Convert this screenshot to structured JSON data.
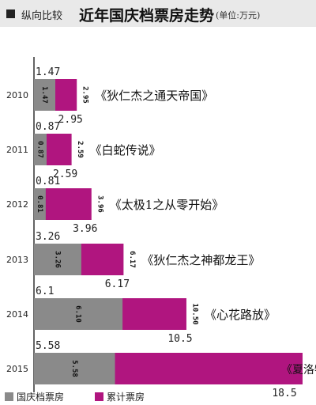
{
  "header": {
    "tag": "纵向比较",
    "title": "近年国庆档票房走势",
    "unit": "(单位:万元)"
  },
  "colors": {
    "national_day": "#8a8a8a",
    "cumulative": "#b0157f",
    "axis": "#222222",
    "header_bg": "#e9e9e9"
  },
  "chart_data": {
    "type": "bar",
    "orientation": "horizontal",
    "stacked": "overlay",
    "categories": [
      "2010",
      "2011",
      "2012",
      "2013",
      "2014",
      "2015"
    ],
    "series": [
      {
        "name": "国庆档票房",
        "values": [
          1.47,
          0.87,
          0.81,
          3.26,
          6.1,
          5.58
        ]
      },
      {
        "name": "累计票房",
        "values": [
          2.95,
          2.59,
          3.96,
          6.17,
          10.5,
          18.5
        ]
      }
    ],
    "inner_labels_national_day": [
      "1.47",
      "0.87",
      "0.81",
      "3.26",
      "6.10",
      "5.58"
    ],
    "inner_labels_cumulative": [
      "2.95",
      "2.59",
      "3.96",
      "6.17",
      "10.50",
      ""
    ],
    "above_labels": [
      "1.47",
      "0.87",
      "0.81",
      "3.26",
      "6.1",
      "5.58"
    ],
    "below_labels": [
      "2.95",
      "2.59",
      "3.96",
      "6.17",
      "10.5",
      "18.5"
    ],
    "films": [
      "《狄仁杰之通天帝国》",
      "《白蛇传说》",
      "《太极1之从零开始》",
      "《狄仁杰之神都龙王》",
      "《心花路放》",
      "《夏洛特烦恼》"
    ],
    "legend": [
      "国庆档票房",
      "累计票房"
    ],
    "legend_position": "bottom-left",
    "xlim": [
      0,
      18.5
    ],
    "grid": false
  }
}
